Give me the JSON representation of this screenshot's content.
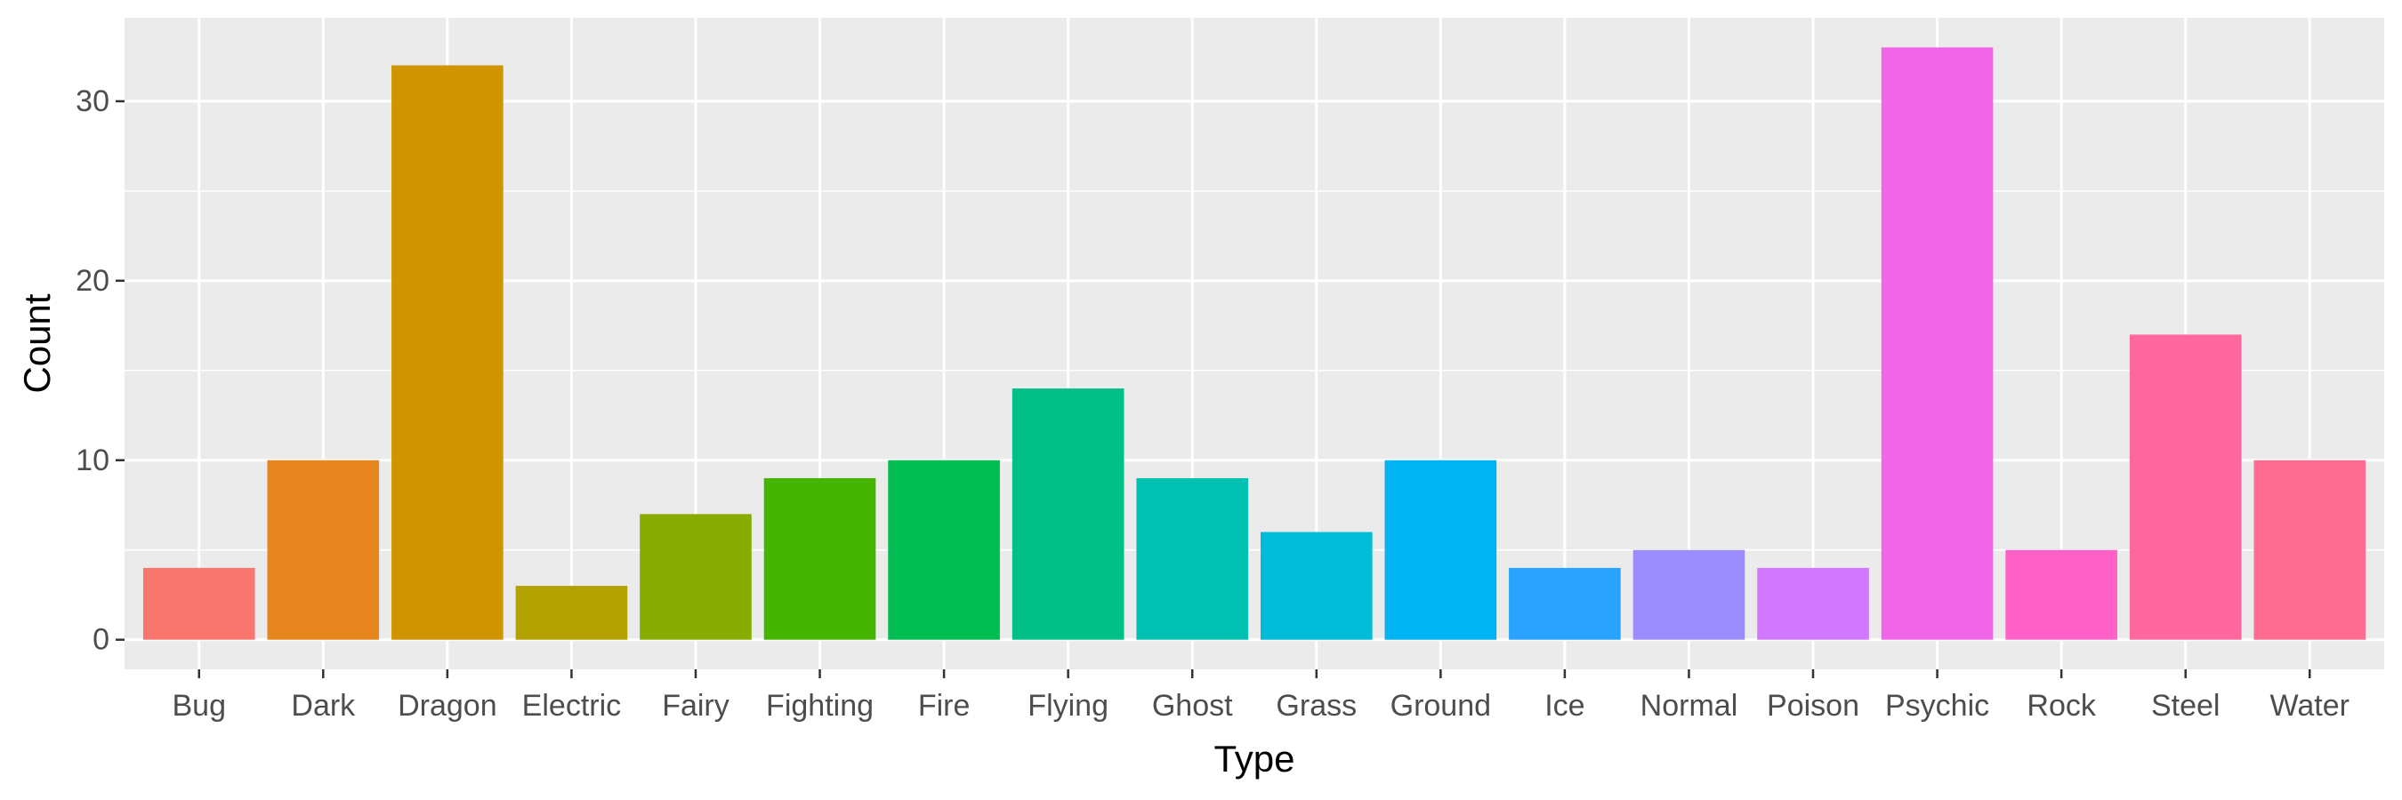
{
  "chart_data": {
    "type": "bar",
    "categories": [
      "Bug",
      "Dark",
      "Dragon",
      "Electric",
      "Fairy",
      "Fighting",
      "Fire",
      "Flying",
      "Ghost",
      "Grass",
      "Ground",
      "Ice",
      "Normal",
      "Poison",
      "Psychic",
      "Rock",
      "Steel",
      "Water"
    ],
    "values": [
      4,
      10,
      32,
      3,
      7,
      9,
      10,
      14,
      9,
      6,
      10,
      4,
      5,
      4,
      33,
      5,
      17,
      10
    ],
    "colors": [
      "#F8766D",
      "#E7851E",
      "#D09400",
      "#B2A100",
      "#89AC00",
      "#45B500",
      "#00BC51",
      "#00C087",
      "#00C0B2",
      "#00BCD6",
      "#00B3F2",
      "#29A3FF",
      "#9C8DFF",
      "#D277FF",
      "#F166E8",
      "#FF61C7",
      "#FF689E",
      "#FF6C92"
    ],
    "xlabel": "Type",
    "ylabel": "Count",
    "ylim": [
      -1.65,
      34.65
    ],
    "yticks": [
      0,
      10,
      20,
      30
    ],
    "ytick_labels": [
      "0",
      "10",
      "20",
      "30"
    ],
    "grid": true,
    "panel_background": "#EBEBEB",
    "grid_color": "#FFFFFF",
    "legend": "none"
  }
}
